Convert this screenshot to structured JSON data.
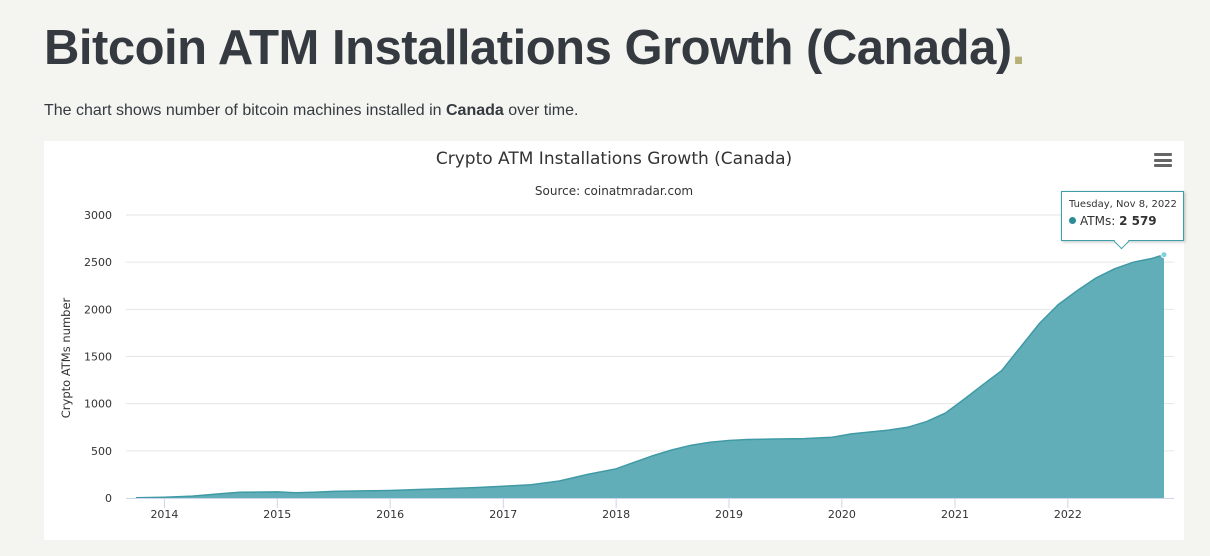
{
  "page": {
    "title": "Bitcoin ATM Installations Growth (Canada)",
    "title_dot": ".",
    "intro_before": "The chart shows number of bitcoin machines installed in ",
    "intro_bold": "Canada",
    "intro_after": " over time."
  },
  "colors": {
    "accent": "#5aaab4",
    "line": "#3f9aa5",
    "title_dot": "#b5b078"
  },
  "menu": {
    "icon": "hamburger-menu-icon"
  },
  "tooltip": {
    "date": "Tuesday, Nov 8, 2022",
    "series_label": "ATMs: ",
    "value": "2 579"
  },
  "chart_data": {
    "type": "area",
    "title": "Crypto ATM Installations Growth (Canada)",
    "subtitle": "Source: coinatmradar.com",
    "ylabel": "Crypto ATMs number",
    "xlabel": "",
    "ylim": [
      0,
      3000
    ],
    "yticks": [
      0,
      500,
      1000,
      1500,
      2000,
      2500,
      3000
    ],
    "xlim": [
      "2013-10-01",
      "2022-11-08"
    ],
    "xticks": [
      {
        "date": "2014-01-01",
        "label": "2014"
      },
      {
        "date": "2015-01-01",
        "label": "2015"
      },
      {
        "date": "2016-01-01",
        "label": "2016"
      },
      {
        "date": "2017-01-01",
        "label": "2017"
      },
      {
        "date": "2018-01-01",
        "label": "2018"
      },
      {
        "date": "2019-01-01",
        "label": "2019"
      },
      {
        "date": "2020-01-01",
        "label": "2020"
      },
      {
        "date": "2021-01-01",
        "label": "2021"
      },
      {
        "date": "2022-01-01",
        "label": "2022"
      }
    ],
    "grid": true,
    "legend": "none",
    "series": [
      {
        "name": "ATMs",
        "points": [
          [
            "2013-10-01",
            2
          ],
          [
            "2014-01-01",
            8
          ],
          [
            "2014-04-01",
            20
          ],
          [
            "2014-07-01",
            45
          ],
          [
            "2014-09-01",
            60
          ],
          [
            "2015-01-01",
            65
          ],
          [
            "2015-03-01",
            55
          ],
          [
            "2015-05-01",
            60
          ],
          [
            "2015-07-01",
            70
          ],
          [
            "2015-10-01",
            75
          ],
          [
            "2016-01-01",
            80
          ],
          [
            "2016-04-01",
            90
          ],
          [
            "2016-07-01",
            100
          ],
          [
            "2016-10-01",
            110
          ],
          [
            "2017-01-01",
            125
          ],
          [
            "2017-04-01",
            140
          ],
          [
            "2017-07-01",
            180
          ],
          [
            "2017-10-01",
            250
          ],
          [
            "2018-01-01",
            310
          ],
          [
            "2018-03-01",
            380
          ],
          [
            "2018-05-01",
            450
          ],
          [
            "2018-07-01",
            510
          ],
          [
            "2018-09-01",
            560
          ],
          [
            "2018-11-01",
            590
          ],
          [
            "2019-01-01",
            610
          ],
          [
            "2019-03-01",
            620
          ],
          [
            "2019-06-01",
            625
          ],
          [
            "2019-09-01",
            630
          ],
          [
            "2019-12-01",
            645
          ],
          [
            "2020-02-01",
            680
          ],
          [
            "2020-04-01",
            700
          ],
          [
            "2020-06-01",
            720
          ],
          [
            "2020-08-01",
            750
          ],
          [
            "2020-10-01",
            810
          ],
          [
            "2020-12-01",
            900
          ],
          [
            "2021-02-01",
            1050
          ],
          [
            "2021-04-01",
            1200
          ],
          [
            "2021-06-01",
            1350
          ],
          [
            "2021-08-01",
            1600
          ],
          [
            "2021-10-01",
            1850
          ],
          [
            "2021-12-01",
            2050
          ],
          [
            "2022-02-01",
            2200
          ],
          [
            "2022-04-01",
            2330
          ],
          [
            "2022-06-01",
            2430
          ],
          [
            "2022-08-01",
            2500
          ],
          [
            "2022-10-01",
            2540
          ],
          [
            "2022-11-08",
            2579
          ]
        ]
      }
    ]
  }
}
